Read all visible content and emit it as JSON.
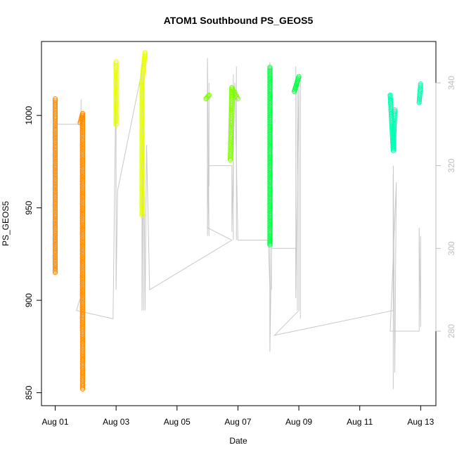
{
  "chart_data": {
    "type": "scatter",
    "title": "ATOM1 Southbound PS_GEOS5",
    "xlabel": "Date",
    "ylabel": "PS_GEOS5",
    "x_ticks": [
      "Aug 01",
      "Aug 03",
      "Aug 05",
      "Aug 07",
      "Aug 09",
      "Aug 11",
      "Aug 13"
    ],
    "x_tick_days": [
      1,
      3,
      5,
      7,
      9,
      11,
      13
    ],
    "xlim_days": [
      0.55,
      13.5
    ],
    "y_ticks": [
      850,
      900,
      950,
      1000
    ],
    "ylim": [
      843,
      1040
    ],
    "y2_ticks": [
      280,
      300,
      320,
      340
    ],
    "y2lim": [
      262,
      350
    ],
    "grid": false,
    "line_color": "#c8c8c8",
    "secondary_axis_color": "#bebebe",
    "series": [
      {
        "color": "#ff8c00",
        "x": 1.0,
        "points": [
          [
            1.0,
            915
          ],
          [
            1.0,
            1009
          ]
        ]
      },
      {
        "color": "#ff8c00",
        "x": 1.9,
        "points": [
          [
            1.9,
            852
          ],
          [
            1.9,
            1001
          ],
          [
            1.82,
            996
          ]
        ]
      },
      {
        "color": "#e8ff00",
        "x": 3.0,
        "points": [
          [
            3.0,
            995
          ],
          [
            3.0,
            1029
          ]
        ]
      },
      {
        "color": "#e8ff00",
        "x": 3.85,
        "points": [
          [
            3.85,
            946
          ],
          [
            3.85,
            1018
          ],
          [
            3.95,
            1034
          ]
        ]
      },
      {
        "color": "#80ff00",
        "x": 6.0,
        "points": [
          [
            5.95,
            1009
          ],
          [
            6.05,
            1011
          ]
        ]
      },
      {
        "color": "#80ff00",
        "x": 6.8,
        "points": [
          [
            6.75,
            976
          ],
          [
            6.8,
            1015
          ],
          [
            7.0,
            1009
          ]
        ]
      },
      {
        "color": "#00ff40",
        "x": 8.05,
        "points": [
          [
            8.05,
            930
          ],
          [
            8.05,
            1026
          ]
        ]
      },
      {
        "color": "#00ff40",
        "x": 8.9,
        "points": [
          [
            8.85,
            1013
          ],
          [
            9.0,
            1021
          ]
        ]
      },
      {
        "color": "#00ffb0",
        "x": 12.1,
        "points": [
          [
            12.0,
            1011
          ],
          [
            12.1,
            981
          ],
          [
            12.15,
            1003
          ]
        ]
      },
      {
        "color": "#00ffb0",
        "x": 12.95,
        "points": [
          [
            12.95,
            1007
          ],
          [
            13.0,
            1017
          ]
        ]
      }
    ]
  }
}
